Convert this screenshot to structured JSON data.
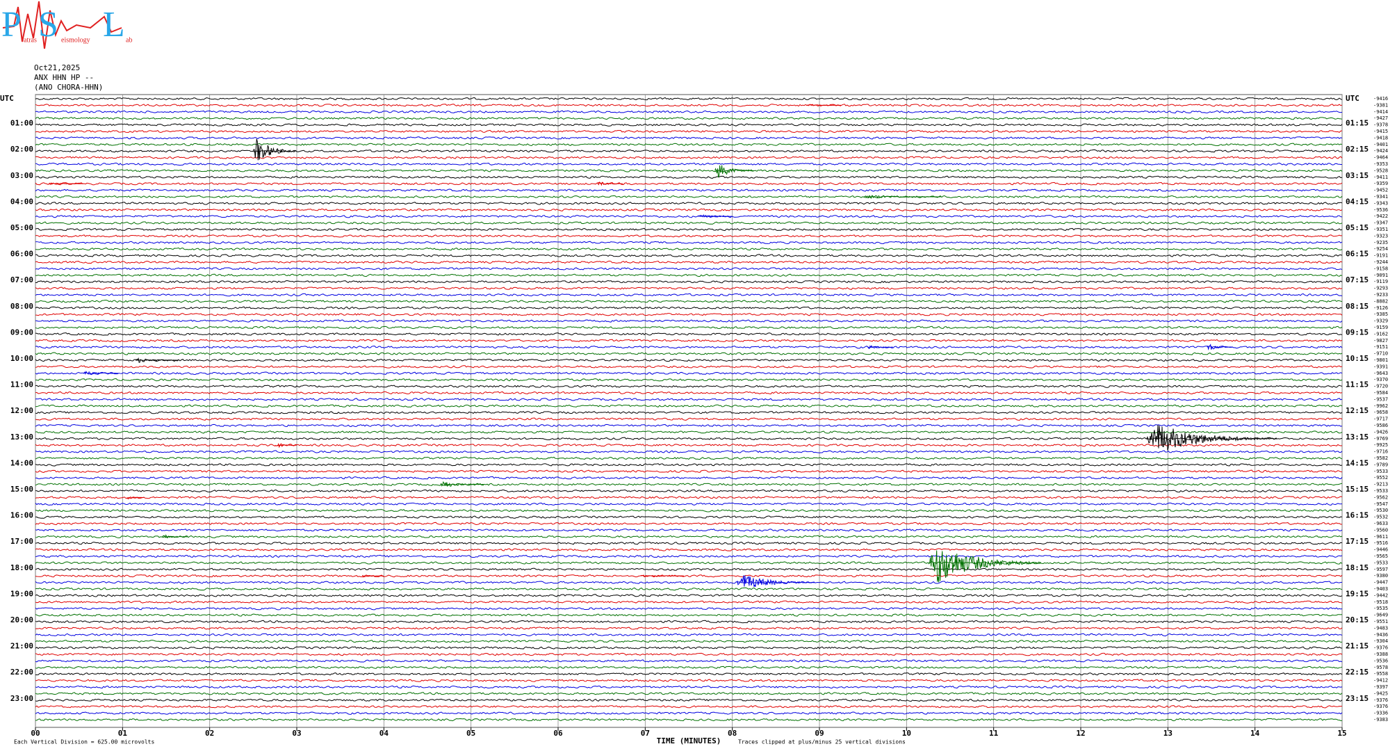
{
  "logo": {
    "letters": [
      "P",
      "S",
      "L"
    ],
    "words": [
      "atras",
      "eismology",
      "ab"
    ]
  },
  "header": {
    "date": "Oct21,2025",
    "station": "ANX HHN HP --",
    "location": "(ANO CHORA-HHN)"
  },
  "plot": {
    "type": "helicorder",
    "left_labels": [
      "UTC",
      "01:00",
      "02:00",
      "03:00",
      "04:00",
      "05:00",
      "06:00",
      "07:00",
      "08:00",
      "09:00",
      "10:00",
      "11:00",
      "12:00",
      "13:00",
      "14:00",
      "15:00",
      "16:00",
      "17:00",
      "18:00",
      "19:00",
      "20:00",
      "21:00",
      "22:00",
      "23:00"
    ],
    "right_labels": [
      "UTC",
      "01:15",
      "02:15",
      "03:15",
      "04:15",
      "05:15",
      "06:15",
      "07:15",
      "08:15",
      "09:15",
      "10:15",
      "11:15",
      "12:15",
      "13:15",
      "14:15",
      "15:15",
      "16:15",
      "17:15",
      "18:15",
      "19:15",
      "20:15",
      "21:15",
      "22:15",
      "23:15"
    ],
    "trace_colors": [
      "#000000",
      "#e00000",
      "#0000e0",
      "#007000"
    ],
    "offsets": [
      -9416,
      -9381,
      -9414,
      -9427,
      -9378,
      -9415,
      -9418,
      -9401,
      -9424,
      -9464,
      -9353,
      -9528,
      -9411,
      -9359,
      -9452,
      -9341,
      -9343,
      -9536,
      -9422,
      -9347,
      -9351,
      -9323,
      -9235,
      -9254,
      -9191,
      -9244,
      -9158,
      -9091,
      -9119,
      -9293,
      -9233,
      -8882,
      -9126,
      -9385,
      -9329,
      -9159,
      -9162,
      -9827,
      -9151,
      -9710,
      -9801,
      -9391,
      -9643,
      -9370,
      -9720,
      -9584,
      -9537,
      -9962,
      -9658,
      -9717,
      -9586,
      -9426,
      -9769,
      -9925,
      -9716,
      -9582,
      -9789,
      -9533,
      -9552,
      -9213,
      -9533,
      -9562,
      -9547,
      -9530,
      -9532,
      -9633,
      -9560,
      -9611,
      -9516,
      -9446,
      -9565,
      -9533,
      -9597,
      -9380,
      -9447,
      -9403,
      -9442,
      -9518,
      -9535,
      -9649,
      -9551,
      -9483,
      -9436,
      -9304,
      -9376,
      -9388,
      -9536,
      -9578,
      -9558,
      -9412,
      -9397,
      -9425,
      -9376,
      -9376,
      -9336,
      -9383
    ],
    "xlim": [
      0,
      15
    ],
    "xticks": [
      {
        "value": 0,
        "label": "00"
      },
      {
        "value": 1,
        "label": "01"
      },
      {
        "value": 2,
        "label": "02"
      },
      {
        "value": 3,
        "label": "03"
      },
      {
        "value": 4,
        "label": "04"
      },
      {
        "value": 5,
        "label": "05"
      },
      {
        "value": 6,
        "label": "06"
      },
      {
        "value": 7,
        "label": "07"
      },
      {
        "value": 8,
        "label": "08"
      },
      {
        "value": 9,
        "label": "09"
      },
      10,
      11,
      12,
      13,
      14,
      15
    ],
    "xlabel": "TIME (MINUTES)",
    "scale_note": "Each Vertical Division =  625.00 microvolts",
    "clip_note": "Traces clipped at plus/minus 25 vertical divisions",
    "grid": true,
    "events": [
      {
        "trace": 1,
        "minute": 8.85,
        "duration": 0.4,
        "amplitude": 1.5
      },
      {
        "trace": 8,
        "minute": 2.5,
        "duration": 0.5,
        "amplitude": 16
      },
      {
        "trace": 11,
        "minute": 7.8,
        "duration": 0.45,
        "amplitude": 9
      },
      {
        "trace": 13,
        "minute": 0.15,
        "duration": 0.4,
        "amplitude": 1.5
      },
      {
        "trace": 13,
        "minute": 6.45,
        "duration": 0.3,
        "amplitude": 2.5
      },
      {
        "trace": 15,
        "minute": 9.5,
        "duration": 0.9,
        "amplitude": 2.5
      },
      {
        "trace": 18,
        "minute": 7.6,
        "duration": 0.4,
        "amplitude": 2.5
      },
      {
        "trace": 38,
        "minute": 9.55,
        "duration": 0.3,
        "amplitude": 2.5
      },
      {
        "trace": 38,
        "minute": 13.45,
        "duration": 0.3,
        "amplitude": 4
      },
      {
        "trace": 40,
        "minute": 1.15,
        "duration": 0.5,
        "amplitude": 3
      },
      {
        "trace": 42,
        "minute": 0.55,
        "duration": 0.4,
        "amplitude": 3
      },
      {
        "trace": 52,
        "minute": 12.75,
        "duration": 1.5,
        "amplitude": 19
      },
      {
        "trace": 53,
        "minute": 2.75,
        "duration": 0.25,
        "amplitude": 3.5
      },
      {
        "trace": 59,
        "minute": 4.65,
        "duration": 0.5,
        "amplitude": 4
      },
      {
        "trace": 61,
        "minute": 1.05,
        "duration": 0.2,
        "amplitude": 2
      },
      {
        "trace": 67,
        "minute": 1.45,
        "duration": 0.3,
        "amplitude": 2.5
      },
      {
        "trace": 71,
        "minute": 10.25,
        "duration": 1.3,
        "amplitude": 25
      },
      {
        "trace": 73,
        "minute": 3.75,
        "duration": 0.25,
        "amplitude": 1.5
      },
      {
        "trace": 73,
        "minute": 6.95,
        "duration": 0.5,
        "amplitude": 1.2
      },
      {
        "trace": 74,
        "minute": 8.05,
        "duration": 0.9,
        "amplitude": 10
      }
    ]
  }
}
